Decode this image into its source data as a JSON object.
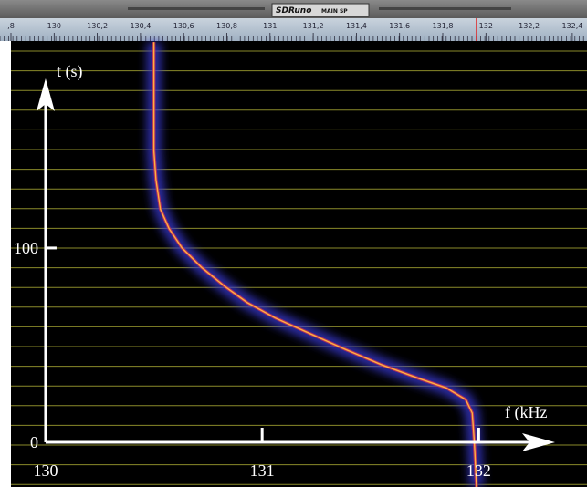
{
  "window": {
    "title": "SDRuno",
    "subtitle": "MAIN SP"
  },
  "ruler": {
    "labels": [
      ",8",
      "130",
      "130,2",
      "130,4",
      "130,6",
      "130,8",
      "131",
      "131,2",
      "131,4",
      "131,6",
      "131,8",
      "132",
      "132,2",
      "132,4"
    ]
  },
  "chart_data": {
    "type": "line",
    "xlabel": "f (kHz",
    "ylabel": "t (s)",
    "x": [
      131.99,
      131.98,
      131.97,
      131.94,
      131.85,
      131.72,
      131.55,
      131.38,
      131.22,
      131.06,
      130.93,
      130.83,
      130.72,
      130.63,
      130.57,
      130.53,
      130.51,
      130.5,
      130.5
    ],
    "values": [
      -23,
      0,
      15,
      22,
      28,
      33,
      40,
      48,
      56,
      64,
      72,
      80,
      90,
      100,
      110,
      120,
      135,
      150,
      206
    ],
    "color": "#ffb040",
    "xlim": [
      129.84,
      132.5
    ],
    "ylim": [
      -23,
      206.5
    ],
    "xticks": [
      130,
      131,
      132
    ],
    "yticks": [
      0,
      100
    ]
  }
}
